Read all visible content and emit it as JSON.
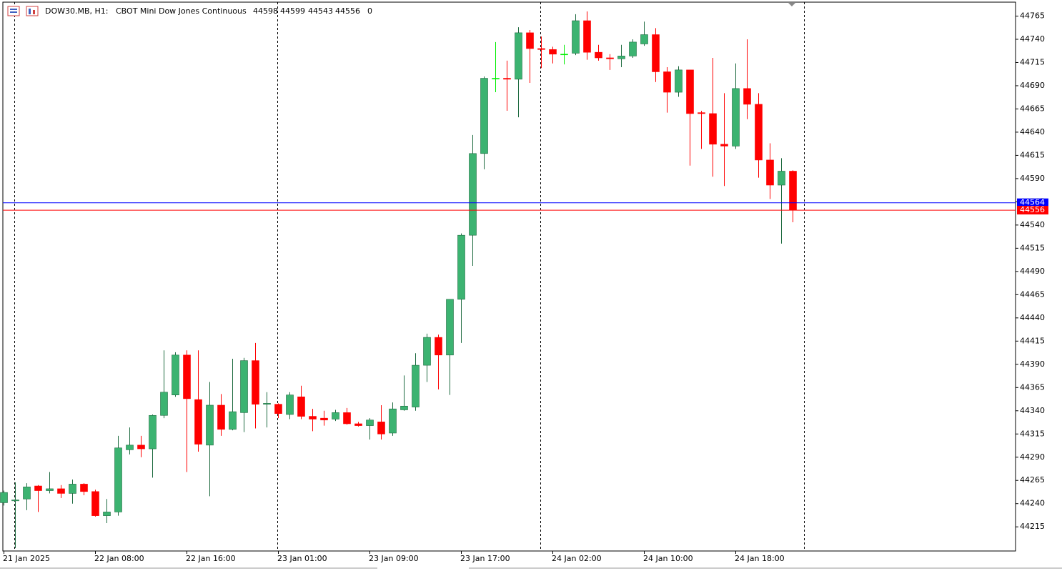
{
  "chart_data": {
    "type": "candlestick",
    "symbol": "DOW30.MB, H1:",
    "description": "CBOT Mini Dow Jones Continuous",
    "quote": [
      44598,
      44599,
      44543,
      44556
    ],
    "tick_volume": 0,
    "categories": [
      "21 Jan 2025",
      null,
      null,
      null,
      null,
      null,
      null,
      null,
      "22 Jan 08:00",
      null,
      null,
      null,
      null,
      null,
      null,
      null,
      "22 Jan 16:00",
      null,
      null,
      null,
      null,
      null,
      null,
      null,
      "23 Jan 01:00",
      null,
      null,
      null,
      null,
      null,
      null,
      null,
      "23 Jan 09:00",
      null,
      null,
      null,
      null,
      null,
      null,
      null,
      "23 Jan 17:00",
      null,
      null,
      null,
      null,
      null,
      null,
      null,
      "24 Jan 02:00",
      null,
      null,
      null,
      null,
      null,
      null,
      null,
      "24 Jan 10:00",
      null,
      null,
      null,
      null,
      null,
      null,
      null,
      "24 Jan 18:00",
      null,
      null,
      null,
      null,
      null
    ],
    "series": [
      {
        "up_color": "#3cb371",
        "down_color": "#ff0000",
        "doji_color": "#00ee00",
        "open": [
          44241,
          44243,
          44245,
          44259,
          44254,
          44256,
          44251,
          44261,
          44253,
          44227,
          44231,
          44298,
          44303,
          44299,
          44335,
          44357,
          44400,
          44352,
          44303,
          44346,
          44320,
          44338,
          44394,
          44347,
          44347,
          44336,
          44355,
          44334,
          44332,
          44331,
          44338,
          44326,
          44324,
          44328,
          44316,
          44341,
          44344,
          44389,
          44419,
          44400,
          44460,
          44529,
          44617,
          44698,
          44698,
          44697,
          44747,
          44730,
          44729,
          44724,
          44725,
          44760,
          44726,
          44720,
          44719,
          44722,
          44735,
          44745,
          44705,
          44683,
          44707,
          44661,
          44660,
          44627,
          44625,
          44687,
          44670,
          44610,
          44583,
          44598
        ],
        "high": [
          44254,
          44263,
          44262,
          44260,
          44274,
          44260,
          44266,
          44262,
          44255,
          44245,
          44313,
          44322,
          44313,
          44336,
          44405,
          44403,
          44405,
          44405,
          44371,
          44358,
          44396,
          44397,
          44413,
          44360,
          44348,
          44360,
          44367,
          44342,
          44340,
          44341,
          44343,
          44328,
          44332,
          44346,
          44349,
          44378,
          44402,
          44423,
          44422,
          44460,
          44531,
          44637,
          44700,
          44737,
          44717,
          44753,
          44750,
          44743,
          44732,
          44734,
          44767,
          44770,
          44734,
          44724,
          44734,
          44740,
          44759,
          44752,
          44710,
          44711,
          44707,
          44663,
          44720,
          44682,
          44714,
          44740,
          44682,
          44628,
          44612,
          44599
        ],
        "low": [
          44238,
          44192,
          44233,
          44231,
          44251,
          44246,
          44240,
          44249,
          44226,
          44219,
          44227,
          44293,
          44290,
          44268,
          44332,
          44355,
          44274,
          44296,
          44248,
          44313,
          44319,
          44317,
          44321,
          44322,
          44332,
          44331,
          44331,
          44318,
          44324,
          44329,
          44325,
          44323,
          44309,
          44309,
          44313,
          44340,
          44340,
          44371,
          44363,
          44357,
          44413,
          44496,
          44600,
          44683,
          44663,
          44656,
          44693,
          44709,
          44714,
          44713,
          44723,
          44718,
          44717,
          44707,
          44710,
          44720,
          44733,
          44694,
          44661,
          44678,
          44604,
          44622,
          44592,
          44582,
          44622,
          44654,
          44591,
          44568,
          44520,
          44543
        ],
        "close": [
          44252,
          44244,
          44258,
          44254,
          44256,
          44251,
          44261,
          44253,
          44227,
          44231,
          44300,
          44303,
          44299,
          44335,
          44360,
          44400,
          44353,
          44304,
          44346,
          44320,
          44339,
          44394,
          44347,
          44348,
          44337,
          44357,
          44334,
          44331,
          44330,
          44338,
          44326,
          44324,
          44330,
          44315,
          44342,
          44345,
          44389,
          44419,
          44400,
          44460,
          44529,
          44617,
          44698,
          44698,
          44697,
          44747,
          44730,
          44729,
          44724,
          44724,
          44760,
          44726,
          44720,
          44719,
          44722,
          44737,
          44745,
          44705,
          44683,
          44707,
          44660,
          44660,
          44627,
          44625,
          44687,
          44670,
          44610,
          44583,
          44598,
          44556
        ]
      }
    ],
    "ylim": [
      44189,
      44780
    ],
    "yticks": [
      44215,
      44240,
      44265,
      44290,
      44315,
      44340,
      44365,
      44390,
      44415,
      44440,
      44465,
      44490,
      44515,
      44540,
      44565,
      44590,
      44615,
      44640,
      44665,
      44690,
      44715,
      44740,
      44765
    ],
    "grid": false,
    "price_lines": [
      {
        "name": "ask",
        "value": 44564,
        "color": "#0000ff"
      },
      {
        "name": "bid",
        "value": 44556,
        "color": "#ff0000"
      }
    ]
  }
}
